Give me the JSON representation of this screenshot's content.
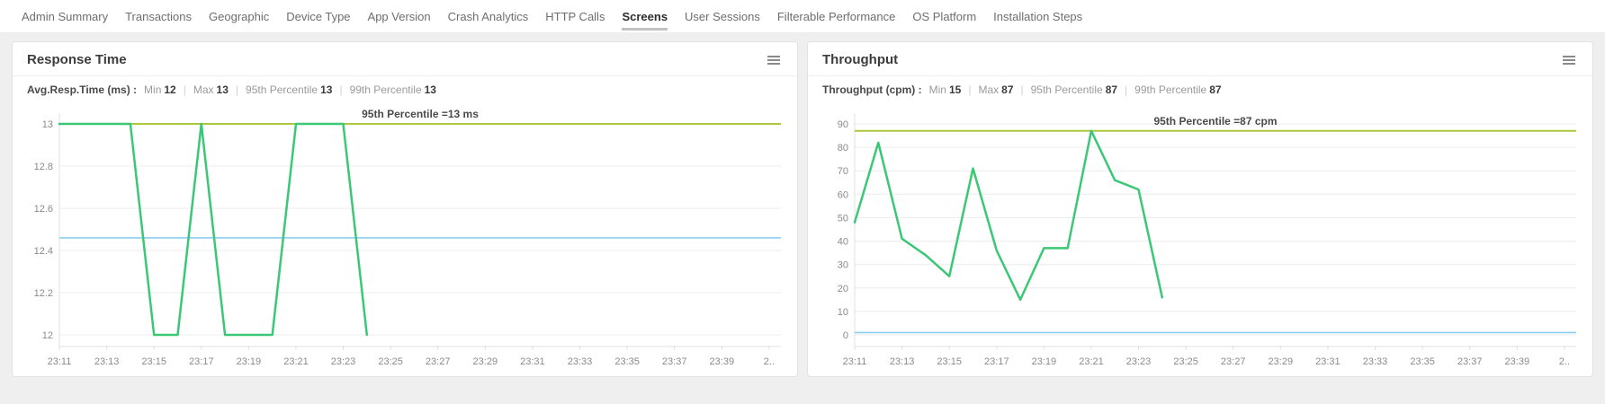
{
  "nav": {
    "items": [
      {
        "label": "Admin Summary",
        "active": false
      },
      {
        "label": "Transactions",
        "active": false
      },
      {
        "label": "Geographic",
        "active": false
      },
      {
        "label": "Device Type",
        "active": false
      },
      {
        "label": "App Version",
        "active": false
      },
      {
        "label": "Crash Analytics",
        "active": false
      },
      {
        "label": "HTTP Calls",
        "active": false
      },
      {
        "label": "Screens",
        "active": true
      },
      {
        "label": "User Sessions",
        "active": false
      },
      {
        "label": "Filterable Performance",
        "active": false
      },
      {
        "label": "OS Platform",
        "active": false
      },
      {
        "label": "Installation Steps",
        "active": false
      }
    ]
  },
  "cards": [
    {
      "title": "Response Time",
      "stats": {
        "metric_label": "Avg.Resp.Time (ms) :",
        "items": [
          {
            "label": "Min",
            "value": "12"
          },
          {
            "label": "Max",
            "value": "13"
          },
          {
            "label": "95th Percentile",
            "value": "13"
          },
          {
            "label": "99th Percentile",
            "value": "13"
          }
        ]
      }
    },
    {
      "title": "Throughput",
      "stats": {
        "metric_label": "Throughput (cpm) :",
        "items": [
          {
            "label": "Min",
            "value": "15"
          },
          {
            "label": "Max",
            "value": "87"
          },
          {
            "label": "95th Percentile",
            "value": "87"
          },
          {
            "label": "99th Percentile",
            "value": "87"
          }
        ]
      }
    }
  ],
  "chart_data": [
    {
      "type": "line",
      "title": "Response Time",
      "ylabel": "Avg.Resp.Time (ms)",
      "x": [
        "23:11",
        "23:12",
        "23:13",
        "23:14",
        "23:15",
        "23:16",
        "23:17",
        "23:18",
        "23:19",
        "23:20",
        "23:21",
        "23:22",
        "23:23",
        "23:24"
      ],
      "values": [
        13,
        13,
        13,
        13,
        12,
        12,
        13,
        12,
        12,
        12,
        13,
        13,
        13,
        12
      ],
      "ylim": [
        12,
        13
      ],
      "y_ticks": [
        13,
        12.8,
        12.6,
        12.4,
        12.2,
        12
      ],
      "y_tick_labels": [
        "13",
        "12.8",
        "12.6",
        "12.4",
        "12.2",
        "12"
      ],
      "x_tick_labels": [
        "23:11",
        "23:13",
        "23:15",
        "23:17",
        "23:19",
        "23:21",
        "23:23",
        "23:25",
        "23:27",
        "23:29",
        "23:31",
        "23:33",
        "23:35",
        "23:37",
        "23:39",
        "2.."
      ],
      "x_domain_minutes": 30.5,
      "percentile_line": {
        "value": 13,
        "label": "95th Percentile =13 ms"
      },
      "baseline_line": {
        "value": 12.46
      },
      "grid": true,
      "colors": {
        "series": "#3bc876",
        "percentile": "#abc93c",
        "baseline": "#8ccdf2",
        "grid": "#ececec",
        "axis": "#e0e0e0",
        "tick_text": "#8a8a8a",
        "annotation_text": "#4a4a4a"
      }
    },
    {
      "type": "line",
      "title": "Throughput",
      "ylabel": "Throughput (cpm)",
      "x": [
        "23:11",
        "23:12",
        "23:13",
        "23:14",
        "23:15",
        "23:16",
        "23:17",
        "23:18",
        "23:19",
        "23:20",
        "23:21",
        "23:22",
        "23:23",
        "23:24"
      ],
      "values": [
        48,
        82,
        41,
        34,
        25,
        71,
        36,
        15,
        37,
        37,
        87,
        66,
        62,
        16
      ],
      "ylim": [
        0,
        90
      ],
      "y_ticks": [
        90,
        80,
        70,
        60,
        50,
        40,
        30,
        20,
        10,
        0
      ],
      "y_tick_labels": [
        "90",
        "80",
        "70",
        "60",
        "50",
        "40",
        "30",
        "20",
        "10",
        "0"
      ],
      "x_tick_labels": [
        "23:11",
        "23:13",
        "23:15",
        "23:17",
        "23:19",
        "23:21",
        "23:23",
        "23:25",
        "23:27",
        "23:29",
        "23:31",
        "23:33",
        "23:35",
        "23:37",
        "23:39",
        "2.."
      ],
      "x_domain_minutes": 30.5,
      "percentile_line": {
        "value": 87,
        "label": "95th Percentile =87 cpm"
      },
      "baseline_line": {
        "value": 1
      },
      "grid": true,
      "colors": {
        "series": "#3bc876",
        "percentile": "#abc93c",
        "baseline": "#8ccdf2",
        "grid": "#ececec",
        "axis": "#e0e0e0",
        "tick_text": "#8a8a8a",
        "annotation_text": "#4a4a4a"
      }
    }
  ]
}
